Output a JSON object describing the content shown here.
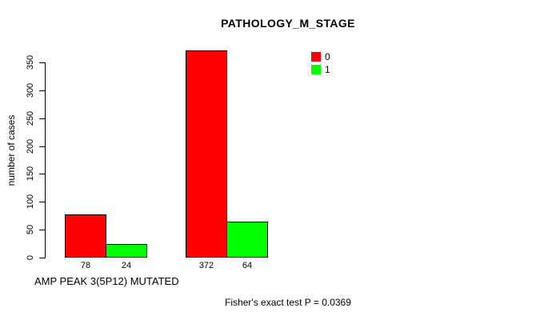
{
  "chart_data": {
    "type": "bar",
    "title": "PATHOLOGY_M_STAGE",
    "ylabel": "number of cases",
    "xlabel": "AMP PEAK 3(5P12) MUTATED",
    "ylim": [
      0,
      372
    ],
    "yticks": [
      0,
      50,
      100,
      150,
      200,
      250,
      300,
      350
    ],
    "grid": false,
    "legend_position": "topright",
    "categories": [
      "",
      ""
    ],
    "series": [
      {
        "name": "0",
        "color": "#ff0000",
        "values": [
          78,
          372
        ]
      },
      {
        "name": "1",
        "color": "#00ff00",
        "values": [
          24,
          64
        ]
      }
    ],
    "annotation": "Fisher's exact test P = 0.0369"
  }
}
